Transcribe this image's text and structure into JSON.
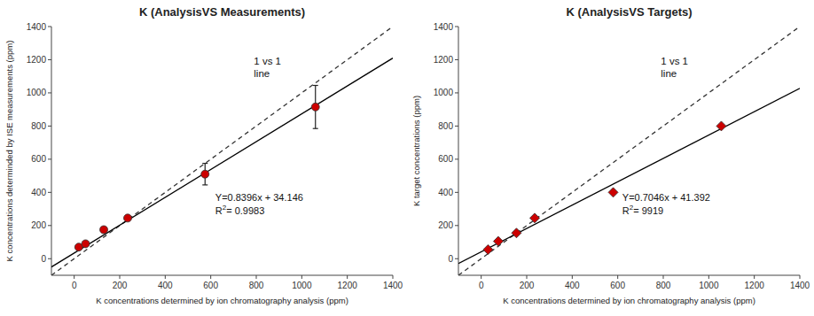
{
  "chart_data": [
    {
      "type": "scatter",
      "title": "K (AnalysisVS Measurements)",
      "x_label": "K concentrations determined by ion chromatography analysis (ppm)",
      "y_label": "K concentrations determinded by ISE measurements (ppm)",
      "series": [
        {
          "type": "scatter",
          "marker": "circle",
          "color": "#cc0000",
          "x": [
            20,
            50,
            130,
            235,
            575,
            1060
          ],
          "values": [
            70,
            90,
            175,
            245,
            510,
            915
          ],
          "errors": [
            0,
            0,
            0,
            0,
            65,
            130
          ]
        },
        {
          "type": "line",
          "line_style": "dashed",
          "color": "#333333",
          "x": [
            -100,
            1400
          ],
          "values": [
            -100,
            1400
          ]
        },
        {
          "type": "line",
          "line_style": "solid",
          "color": "#000000",
          "x": [
            -100,
            1400
          ],
          "values": [
            -49.814,
            1209.586
          ]
        }
      ],
      "annotations": [
        "Y=0.8396x + 34.146",
        "R",
        "2",
        "= 0.9983",
        "1 vs 1\nline"
      ],
      "xlim": [
        -100,
        1400
      ],
      "ylim": [
        -100,
        1400
      ],
      "xticks": [
        0,
        200,
        400,
        600,
        800,
        1000,
        1200,
        1400
      ],
      "yticks": [
        0,
        200,
        400,
        600,
        800,
        1000,
        1200,
        1400
      ],
      "grid": false
    },
    {
      "type": "scatter",
      "title": "K (AnalysisVS Targets)",
      "x_label": "K concentrations determined by ion chromatography analysis (ppm)",
      "y_label": "K target concentrations (ppm)",
      "series": [
        {
          "type": "scatter",
          "marker": "diamond",
          "color": "#cc0000",
          "x": [
            30,
            75,
            155,
            235,
            580,
            1055
          ],
          "values": [
            55,
            105,
            155,
            245,
            400,
            800
          ]
        },
        {
          "type": "line",
          "line_style": "dashed",
          "color": "#333333",
          "x": [
            -100,
            1400
          ],
          "values": [
            -100,
            1400
          ]
        },
        {
          "type": "line",
          "line_style": "solid",
          "color": "#000000",
          "x": [
            -100,
            1400
          ],
          "values": [
            -29.068,
            1027.832
          ]
        }
      ],
      "annotations": [
        "Y=0.7046x + 41.392",
        "R",
        "2",
        "= 9919",
        "1 vs 1\nline"
      ],
      "xlim": [
        -100,
        1400
      ],
      "ylim": [
        -100,
        1400
      ],
      "xticks": [
        0,
        200,
        400,
        600,
        800,
        1000,
        1200,
        1400
      ],
      "yticks": [
        0,
        200,
        400,
        600,
        800,
        1000,
        1200,
        1400
      ],
      "grid": false
    }
  ]
}
